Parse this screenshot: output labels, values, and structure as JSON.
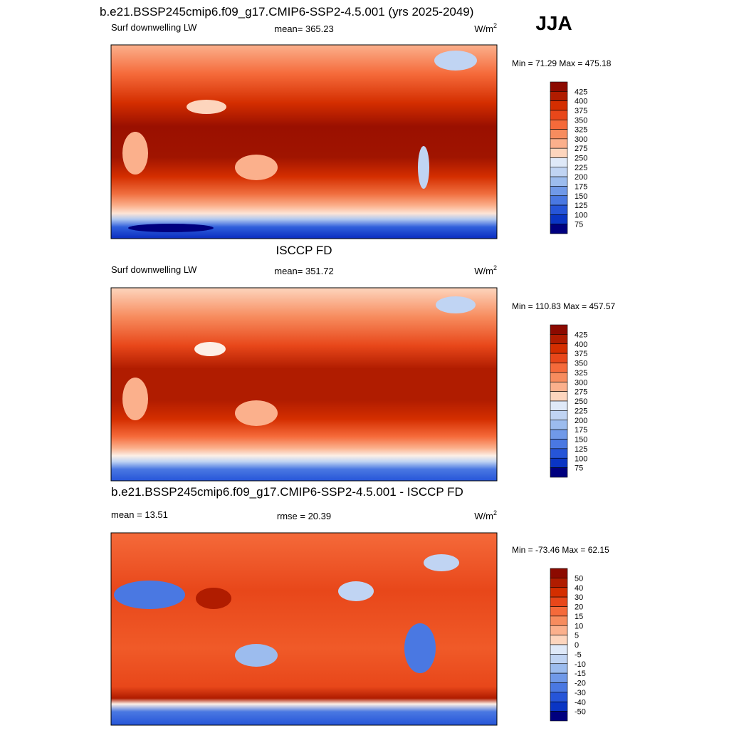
{
  "title": "b.e21.BSSP245cmip6.f09_g17.CMIP6-SSP2-4.5.001 (yrs 2025-2049)",
  "season": "JJA",
  "panels": [
    {
      "left": "Surf downwelling LW",
      "center": "mean= 365.23",
      "units": {
        "base": "W/m",
        "sup": "2"
      },
      "minmax": "Min =  71.29 Max = 475.18",
      "colorbar": {
        "labels": [
          425,
          400,
          375,
          350,
          325,
          300,
          275,
          250,
          225,
          200,
          175,
          150,
          125,
          100,
          75
        ],
        "colors": [
          "#8c0a00",
          "#b01c00",
          "#d42e00",
          "#e8471a",
          "#f56a3a",
          "#f78c5e",
          "#fbb08c",
          "#fdd5bd",
          "#fdefe6",
          "#dfe9f8",
          "#c0d4f3",
          "#9cbcee",
          "#7099e8",
          "#4a78e2",
          "#2655d8",
          "#0a35c4",
          "#00007f"
        ]
      }
    },
    {
      "heading": "ISCCP FD",
      "left": "Surf downwelling LW",
      "center": "mean= 351.72",
      "units": {
        "base": "W/m",
        "sup": "2"
      },
      "minmax": "Min = 110.83 Max = 457.57",
      "colorbar": {
        "labels": [
          425,
          400,
          375,
          350,
          325,
          300,
          275,
          250,
          225,
          200,
          175,
          150,
          125,
          100,
          75
        ],
        "colors": [
          "#8c0a00",
          "#b01c00",
          "#d42e00",
          "#e8471a",
          "#f56a3a",
          "#f78c5e",
          "#fbb08c",
          "#fdd5bd",
          "#fdefe6",
          "#dfe9f8",
          "#c0d4f3",
          "#9cbcee",
          "#7099e8",
          "#4a78e2",
          "#2655d8",
          "#0a35c4",
          "#00007f"
        ]
      }
    },
    {
      "heading": "b.e21.BSSP245cmip6.f09_g17.CMIP6-SSP2-4.5.001 - ISCCP FD",
      "left": "mean =  13.51",
      "center": "rmse =  20.39",
      "units": {
        "base": "W/m",
        "sup": "2"
      },
      "minmax": "Min = -73.46 Max =  62.15",
      "colorbar": {
        "labels": [
          50,
          40,
          30,
          20,
          15,
          10,
          5,
          0,
          -5,
          -10,
          -15,
          -20,
          -30,
          -40,
          -50
        ],
        "colors": [
          "#8c0a00",
          "#b01c00",
          "#d42e00",
          "#e8471a",
          "#f56a3a",
          "#f78c5e",
          "#fbb08c",
          "#fdd5bd",
          "#fdefe6",
          "#dfe9f8",
          "#c0d4f3",
          "#9cbcee",
          "#7099e8",
          "#4a78e2",
          "#2655d8",
          "#0a35c4",
          "#00007f"
        ]
      }
    }
  ]
}
